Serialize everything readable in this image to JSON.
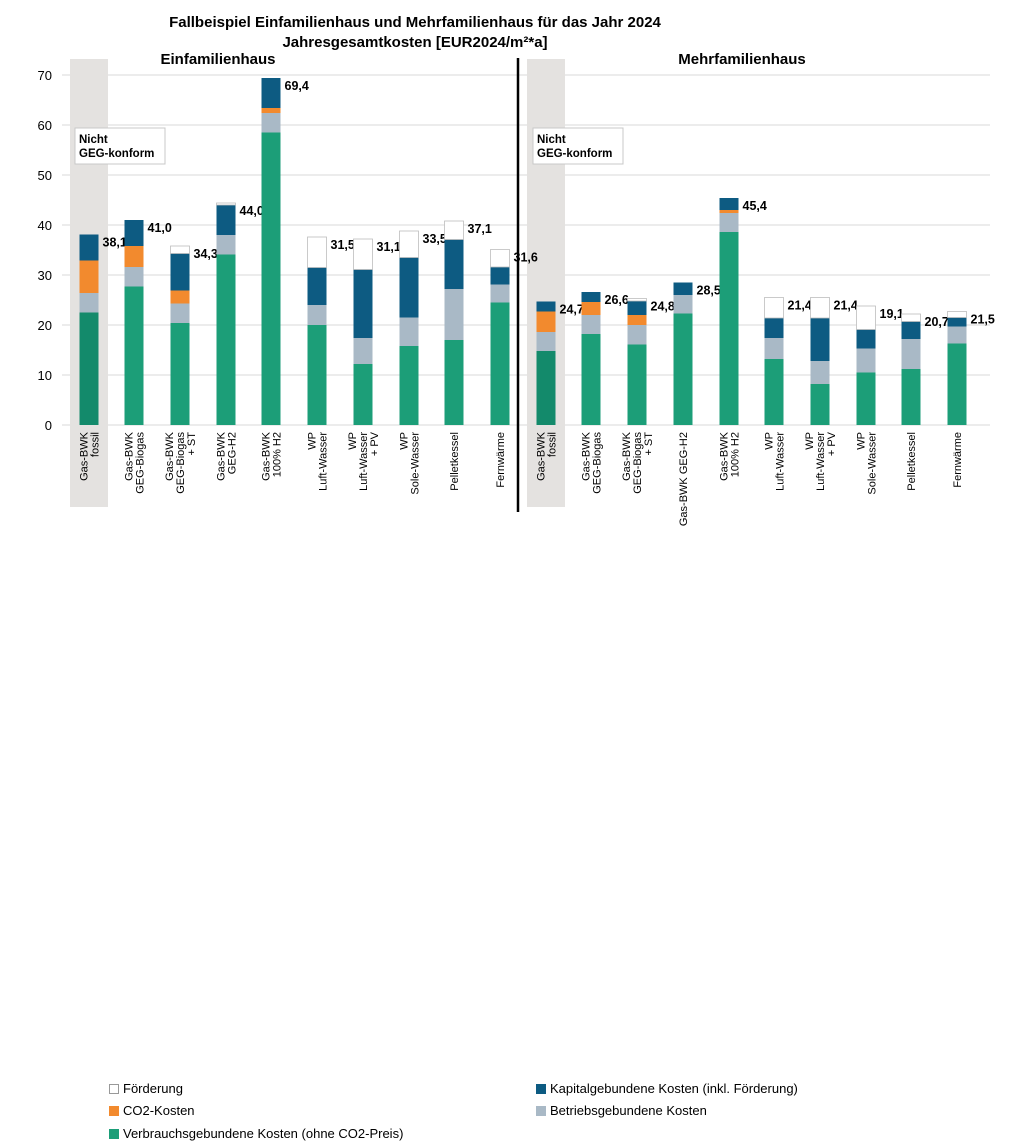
{
  "chart_data": {
    "type": "bar",
    "stacked": true,
    "title": "Fallbeispiel Einfamilienhaus und Mehrfamilienhaus für das Jahr 2024",
    "subtitle": "Jahresgesamtkosten [EUR2024/m²*a]",
    "ylim": [
      0,
      70
    ],
    "yticks": [
      "0",
      "10",
      "20",
      "30",
      "40",
      "50",
      "60",
      "70"
    ],
    "grid": true,
    "legend_position": "bottom",
    "colors": {
      "foerderung": "#ffffff",
      "co2": "#f28a2e",
      "verbrauch": "#1c9e78",
      "kapital": "#0d5b82",
      "betrieb": "#a9b9c6",
      "verbrauch_fossil": "#138a6b",
      "shade": "#e4e2e0"
    },
    "legend": [
      {
        "key": "foerderung",
        "label": "Förderung"
      },
      {
        "key": "kapital",
        "label": "Kapitalgebundene Kosten (inkl. Förderung)"
      },
      {
        "key": "co2",
        "label": "CO2-Kosten"
      },
      {
        "key": "betrieb",
        "label": "Betriebsgebundene Kosten"
      },
      {
        "key": "verbrauch",
        "label": "Verbrauchsgebundene Kosten (ohne CO2-Preis)"
      }
    ],
    "stack_order": [
      "verbrauch",
      "betrieb",
      "co2",
      "kapital",
      "foerderung"
    ],
    "groups": [
      {
        "name": "Einfamilienhaus",
        "note": [
          "Nicht",
          "GEG-konform"
        ],
        "categories": [
          {
            "label": [
              "Gas-BWK",
              "fossil"
            ],
            "verbrauch": 22.5,
            "betrieb": 3.9,
            "co2": 6.5,
            "kapital": 5.2,
            "foerderung": 0,
            "total": "38,1"
          },
          {
            "label": [
              "Gas-BWK",
              "GEG-Biogas"
            ],
            "verbrauch": 27.7,
            "betrieb": 3.9,
            "co2": 4.2,
            "kapital": 5.2,
            "foerderung": 0,
            "total": "41,0"
          },
          {
            "label": [
              "Gas-BWK",
              "GEG-Biogas",
              "+ ST"
            ],
            "verbrauch": 20.4,
            "betrieb": 3.9,
            "co2": 2.6,
            "kapital": 7.4,
            "foerderung": 1.5,
            "total": "34,3"
          },
          {
            "label": [
              "Gas-BWK",
              "GEG-H2"
            ],
            "verbrauch": 34.1,
            "betrieb": 3.9,
            "co2": 0,
            "kapital": 6.0,
            "foerderung": 0.4,
            "total": "44,0"
          },
          {
            "label": [
              "Gas-BWK",
              "100% H2"
            ],
            "verbrauch": 58.5,
            "betrieb": 3.9,
            "co2": 1.0,
            "kapital": 6.0,
            "foerderung": 0,
            "total": "69,4"
          },
          {
            "label": [
              "WP",
              "Luft-Wasser"
            ],
            "verbrauch": 20.0,
            "betrieb": 4.0,
            "co2": 0,
            "kapital": 7.5,
            "foerderung": 6.1,
            "total": "31,5"
          },
          {
            "label": [
              "WP",
              "Luft-Wasser",
              "+ PV"
            ],
            "verbrauch": 12.2,
            "betrieb": 5.2,
            "co2": 0,
            "kapital": 13.7,
            "foerderung": 6.1,
            "total": "31,1"
          },
          {
            "label": [
              "WP",
              "Sole-Wasser"
            ],
            "verbrauch": 15.8,
            "betrieb": 5.7,
            "co2": 0,
            "kapital": 12.0,
            "foerderung": 5.3,
            "total": "33,5"
          },
          {
            "label": [
              "Pelletkessel"
            ],
            "verbrauch": 17.0,
            "betrieb": 10.2,
            "co2": 0,
            "kapital": 9.9,
            "foerderung": 3.7,
            "total": "37,1"
          },
          {
            "label": [
              "Fernwärme"
            ],
            "verbrauch": 24.5,
            "betrieb": 3.6,
            "co2": 0,
            "kapital": 3.5,
            "foerderung": 3.5,
            "total": "31,6"
          }
        ]
      },
      {
        "name": "Mehrfamilienhaus",
        "note": [
          "Nicht",
          "GEG-konform"
        ],
        "categories": [
          {
            "label": [
              "Gas-BWK",
              "fossil"
            ],
            "verbrauch": 14.8,
            "betrieb": 3.8,
            "co2": 4.1,
            "kapital": 2.0,
            "foerderung": 0,
            "total": "24,7"
          },
          {
            "label": [
              "Gas-BWK",
              "GEG-Biogas"
            ],
            "verbrauch": 18.2,
            "betrieb": 3.8,
            "co2": 2.6,
            "kapital": 2.0,
            "foerderung": 0,
            "total": "26,6"
          },
          {
            "label": [
              "Gas-BWK",
              "GEG-Biogas",
              "+ ST"
            ],
            "verbrauch": 16.1,
            "betrieb": 3.9,
            "co2": 2.0,
            "kapital": 2.8,
            "foerderung": 0.5,
            "total": "24,8"
          },
          {
            "label": [
              "Gas-BWK GEG-H2"
            ],
            "verbrauch": 22.3,
            "betrieb": 3.7,
            "co2": 0,
            "kapital": 2.5,
            "foerderung": 0,
            "total": "28,5"
          },
          {
            "label": [
              "Gas-BWK",
              "100% H2"
            ],
            "verbrauch": 38.6,
            "betrieb": 3.8,
            "co2": 0.6,
            "kapital": 2.4,
            "foerderung": 0,
            "total": "45,4"
          },
          {
            "label": [
              "WP",
              "Luft-Wasser"
            ],
            "verbrauch": 13.2,
            "betrieb": 4.2,
            "co2": 0,
            "kapital": 4.0,
            "foerderung": 4.1,
            "total": "21,4"
          },
          {
            "label": [
              "WP",
              "Luft-Wasser",
              "+ PV"
            ],
            "verbrauch": 8.2,
            "betrieb": 4.6,
            "co2": 0,
            "kapital": 8.6,
            "foerderung": 4.1,
            "total": "21,4"
          },
          {
            "label": [
              "WP",
              "Sole-Wasser"
            ],
            "verbrauch": 10.5,
            "betrieb": 4.8,
            "co2": 0,
            "kapital": 3.8,
            "foerderung": 4.7,
            "total": "19,1"
          },
          {
            "label": [
              "Pelletkessel"
            ],
            "verbrauch": 11.2,
            "betrieb": 6.0,
            "co2": 0,
            "kapital": 3.5,
            "foerderung": 1.5,
            "total": "20,7"
          },
          {
            "label": [
              "Fernwärme"
            ],
            "verbrauch": 16.3,
            "betrieb": 3.4,
            "co2": 0,
            "kapital": 1.8,
            "foerderung": 1.2,
            "total": "21,5"
          }
        ]
      }
    ]
  }
}
